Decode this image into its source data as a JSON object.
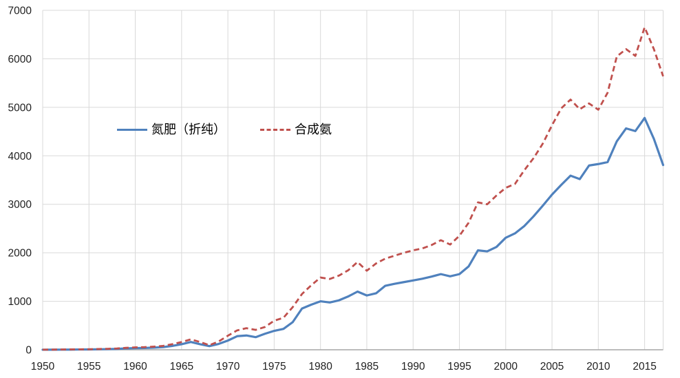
{
  "chart_data": {
    "type": "line",
    "title": "",
    "xlabel": "",
    "ylabel": "",
    "xlim": [
      1950,
      2017
    ],
    "ylim": [
      0,
      7000
    ],
    "x_ticks": [
      1950,
      1955,
      1960,
      1965,
      1970,
      1975,
      1980,
      1985,
      1990,
      1995,
      2000,
      2005,
      2010,
      2015
    ],
    "y_ticks": [
      0,
      1000,
      2000,
      3000,
      4000,
      5000,
      6000,
      7000
    ],
    "grid": {
      "horizontal": true,
      "vertical": true,
      "color": "#D9D9D9"
    },
    "axis_line_color": "#A6A6A6",
    "tick_label_color": "#1F1F1F",
    "legend_position": "inside-upper-left",
    "x": [
      1950,
      1951,
      1952,
      1953,
      1954,
      1955,
      1956,
      1957,
      1958,
      1959,
      1960,
      1961,
      1962,
      1963,
      1964,
      1965,
      1966,
      1967,
      1968,
      1969,
      1970,
      1971,
      1972,
      1973,
      1974,
      1975,
      1976,
      1977,
      1978,
      1979,
      1980,
      1981,
      1982,
      1983,
      1984,
      1985,
      1986,
      1987,
      1988,
      1989,
      1990,
      1991,
      1992,
      1993,
      1994,
      1995,
      1996,
      1997,
      1998,
      1999,
      2000,
      2001,
      2002,
      2003,
      2004,
      2005,
      2006,
      2007,
      2008,
      2009,
      2010,
      2011,
      2012,
      2013,
      2014,
      2015,
      2016,
      2017
    ],
    "series": [
      {
        "name": "氮肥（折纯）",
        "color": "#4F81BD",
        "line_style": "solid",
        "values": [
          1,
          2,
          3,
          4,
          6,
          7,
          10,
          13,
          18,
          28,
          34,
          37,
          44,
          55,
          80,
          115,
          160,
          115,
          75,
          120,
          190,
          280,
          295,
          260,
          330,
          390,
          430,
          570,
          850,
          930,
          1000,
          975,
          1020,
          1100,
          1200,
          1120,
          1165,
          1320,
          1360,
          1395,
          1430,
          1465,
          1510,
          1560,
          1515,
          1560,
          1720,
          2050,
          2030,
          2120,
          2310,
          2400,
          2550,
          2750,
          2970,
          3200,
          3400,
          3590,
          3520,
          3800,
          3830,
          3870,
          4300,
          4565,
          4510,
          4780,
          4350,
          3810
        ]
      },
      {
        "name": "合成氨",
        "color": "#C0504D",
        "line_style": "dashed",
        "values": [
          2,
          3,
          5,
          7,
          9,
          11,
          15,
          20,
          27,
          40,
          50,
          55,
          65,
          80,
          115,
          160,
          215,
          160,
          95,
          170,
          290,
          400,
          445,
          410,
          470,
          600,
          660,
          880,
          1150,
          1330,
          1490,
          1460,
          1530,
          1640,
          1810,
          1630,
          1780,
          1880,
          1940,
          2000,
          2050,
          2090,
          2160,
          2260,
          2170,
          2350,
          2620,
          3040,
          3000,
          3180,
          3340,
          3420,
          3700,
          3950,
          4250,
          4630,
          4980,
          5160,
          4960,
          5080,
          4950,
          5300,
          6050,
          6200,
          6060,
          6650,
          6200,
          5640
        ]
      }
    ]
  },
  "legend": {
    "items": [
      {
        "label": "氮肥（折纯）",
        "swatch": "solid-blue-line"
      },
      {
        "label": "合成氨",
        "swatch": "dashed-red-line"
      }
    ]
  }
}
